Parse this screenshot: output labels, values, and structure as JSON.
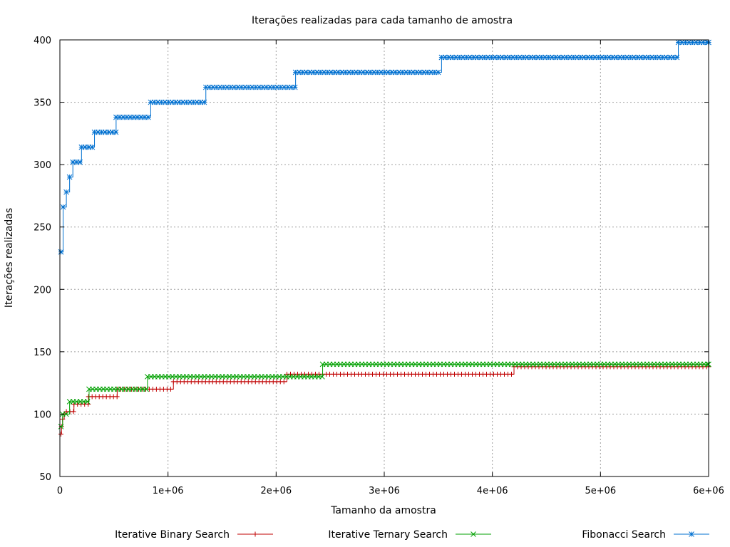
{
  "chart_data": {
    "type": "line",
    "title": "Iterações realizadas para cada tamanho de amostra",
    "xlabel": "Tamanho da amostra",
    "ylabel": "Iterações realizadas",
    "xlim": [
      0,
      6000000
    ],
    "ylim": [
      50,
      400
    ],
    "x_ticks": [
      0,
      1000000,
      2000000,
      3000000,
      4000000,
      5000000,
      6000000
    ],
    "x_tick_labels": [
      "0",
      "1e+06",
      "2e+06",
      "3e+06",
      "4e+06",
      "5e+06",
      "6e+06"
    ],
    "y_ticks": [
      50,
      100,
      150,
      200,
      250,
      300,
      350,
      400
    ],
    "y_tick_labels": [
      "50",
      "100",
      "150",
      "200",
      "250",
      "300",
      "350",
      "400"
    ],
    "grid": true,
    "legend_position": "bottom",
    "series": [
      {
        "name": "Iterative Binary Search",
        "color": "#c00000",
        "marker": "plus",
        "steps": [
          [
            10000,
            84
          ],
          [
            15000,
            90
          ],
          [
            25000,
            96
          ],
          [
            40000,
            100
          ],
          [
            60000,
            102
          ],
          [
            130000,
            108
          ],
          [
            265000,
            114
          ],
          [
            530000,
            120
          ],
          [
            1050000,
            126
          ],
          [
            2100000,
            132
          ],
          [
            4200000,
            138
          ],
          [
            6000000,
            138
          ]
        ]
      },
      {
        "name": "Iterative Ternary Search",
        "color": "#00a000",
        "marker": "cross",
        "steps": [
          [
            10000,
            90
          ],
          [
            25000,
            100
          ],
          [
            90000,
            110
          ],
          [
            270000,
            120
          ],
          [
            810000,
            130
          ],
          [
            2430000,
            140
          ],
          [
            6000000,
            140
          ]
        ]
      },
      {
        "name": "Fibonacci Search",
        "color": "#0070d0",
        "marker": "star",
        "steps": [
          [
            10000,
            230
          ],
          [
            30000,
            266
          ],
          [
            60000,
            278
          ],
          [
            90000,
            290
          ],
          [
            120000,
            302
          ],
          [
            200000,
            314
          ],
          [
            320000,
            326
          ],
          [
            520000,
            338
          ],
          [
            840000,
            350
          ],
          [
            1350000,
            362
          ],
          [
            2180000,
            374
          ],
          [
            3530000,
            386
          ],
          [
            5720000,
            398
          ],
          [
            6000000,
            398
          ]
        ]
      }
    ]
  }
}
